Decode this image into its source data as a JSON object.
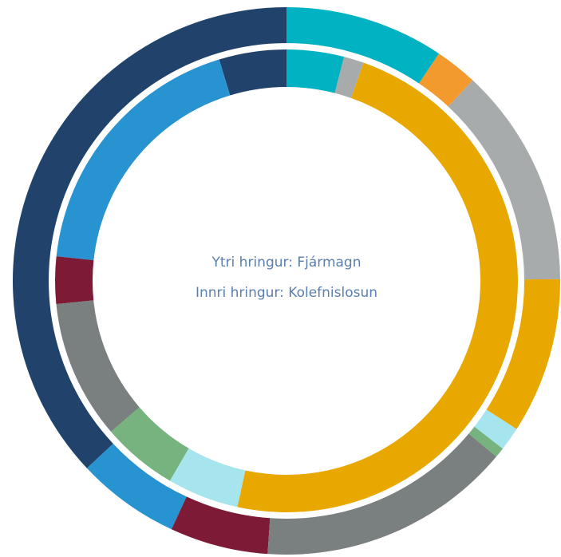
{
  "chart_data": {
    "type": "donut",
    "center_text": [
      "Ytri hringur: Fjármagn",
      "Innri hringur: Kolefnislosun"
    ],
    "series": [
      {
        "values": [
          9.4,
          2.5,
          13,
          9.2,
          1.4,
          0.6,
          15,
          5.8,
          6.1,
          37
        ],
        "colors": [
          "#00b2c2",
          "#f29a2e",
          "#a7abab",
          "#e8a800",
          "#a6e4ee",
          "#77b37e",
          "#79807f",
          "#7d1a35",
          "#2893d1",
          "#21426a"
        ]
      },
      {
        "values": [
          4,
          1.4,
          48,
          5,
          5.3,
          9.7,
          3.3,
          18.6,
          4.7
        ],
        "colors": [
          "#00b2c2",
          "#a7abab",
          "#e8a800",
          "#a6e4ee",
          "#77b37e",
          "#79807f",
          "#7d1a35",
          "#2893d1",
          "#21426a"
        ]
      }
    ]
  }
}
